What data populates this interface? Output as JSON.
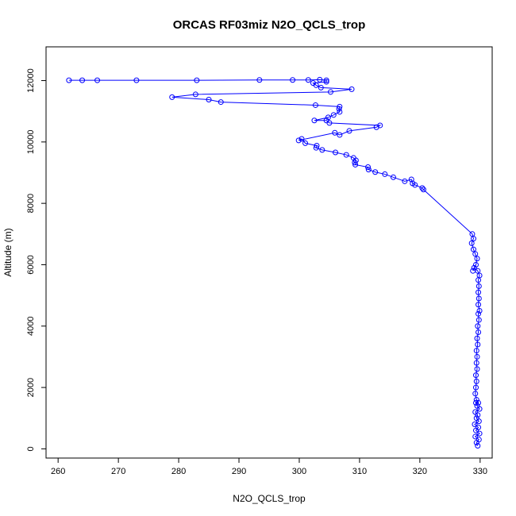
{
  "chart_data": {
    "type": "scatter",
    "title": "ORCAS RF03miz N2O_QCLS_trop",
    "xlabel": "N2O_QCLS_trop",
    "ylabel": "Altitude (m)",
    "xlim": [
      258,
      332
    ],
    "ylim": [
      -300,
      13100
    ],
    "xticks": [
      260,
      270,
      280,
      290,
      300,
      310,
      320,
      330
    ],
    "yticks": [
      0,
      2000,
      4000,
      6000,
      8000,
      10000,
      12000
    ],
    "series": [
      {
        "color": "#0000ff",
        "marker": "open-circle",
        "connected": true,
        "points": [
          [
            329.6,
            100
          ],
          [
            329.4,
            200
          ],
          [
            329.8,
            300
          ],
          [
            329.2,
            400
          ],
          [
            329.9,
            500
          ],
          [
            329.3,
            600
          ],
          [
            329.7,
            700
          ],
          [
            329.1,
            800
          ],
          [
            329.8,
            900
          ],
          [
            329.4,
            1000
          ],
          [
            329.6,
            1100
          ],
          [
            329.2,
            1200
          ],
          [
            329.9,
            1300
          ],
          [
            329.5,
            1400
          ],
          [
            329.3,
            1500
          ],
          [
            329.7,
            1500
          ],
          [
            329.4,
            1600
          ],
          [
            329.2,
            1800
          ],
          [
            329.3,
            2000
          ],
          [
            329.4,
            2200
          ],
          [
            329.3,
            2400
          ],
          [
            329.5,
            2600
          ],
          [
            329.4,
            2800
          ],
          [
            329.5,
            3000
          ],
          [
            329.4,
            3200
          ],
          [
            329.6,
            3400
          ],
          [
            329.5,
            3600
          ],
          [
            329.7,
            3800
          ],
          [
            329.6,
            4000
          ],
          [
            329.8,
            4200
          ],
          [
            329.7,
            4400
          ],
          [
            329.9,
            4500
          ],
          [
            329.7,
            4700
          ],
          [
            329.8,
            4900
          ],
          [
            329.7,
            5100
          ],
          [
            329.8,
            5300
          ],
          [
            329.7,
            5500
          ],
          [
            329.9,
            5650
          ],
          [
            329.6,
            5800
          ],
          [
            329.0,
            5900
          ],
          [
            328.8,
            5800
          ],
          [
            329.3,
            6000
          ],
          [
            329.5,
            6200
          ],
          [
            329.2,
            6350
          ],
          [
            328.9,
            6500
          ],
          [
            328.6,
            6700
          ],
          [
            328.9,
            6850
          ],
          [
            328.7,
            7000
          ],
          [
            320.6,
            8450
          ],
          [
            320.4,
            8500
          ],
          [
            319.2,
            8600
          ],
          [
            318.8,
            8650
          ],
          [
            318.6,
            8780
          ],
          [
            317.5,
            8720
          ],
          [
            315.6,
            8850
          ],
          [
            314.2,
            8950
          ],
          [
            312.6,
            9020
          ],
          [
            311.5,
            9100
          ],
          [
            311.4,
            9180
          ],
          [
            309.3,
            9260
          ],
          [
            309.2,
            9330
          ],
          [
            309.4,
            9400
          ],
          [
            309.0,
            9480
          ],
          [
            307.8,
            9580
          ],
          [
            306.0,
            9660
          ],
          [
            303.8,
            9740
          ],
          [
            302.8,
            9810
          ],
          [
            302.9,
            9880
          ],
          [
            301.0,
            9960
          ],
          [
            300.4,
            10100
          ],
          [
            299.9,
            10050
          ],
          [
            305.9,
            10300
          ],
          [
            306.7,
            10230
          ],
          [
            308.3,
            10360
          ],
          [
            312.8,
            10480
          ],
          [
            313.4,
            10540
          ],
          [
            305.0,
            10620
          ],
          [
            304.5,
            10700
          ],
          [
            302.5,
            10700
          ],
          [
            304.8,
            10800
          ],
          [
            305.7,
            10880
          ],
          [
            306.7,
            10980
          ],
          [
            306.6,
            11080
          ],
          [
            306.7,
            11150
          ],
          [
            302.7,
            11200
          ],
          [
            287.0,
            11300
          ],
          [
            285.0,
            11380
          ],
          [
            278.9,
            11460
          ],
          [
            282.8,
            11550
          ],
          [
            305.2,
            11630
          ],
          [
            308.7,
            11720
          ],
          [
            303.6,
            11770
          ],
          [
            302.8,
            11850
          ],
          [
            302.3,
            11920
          ],
          [
            304.5,
            11960
          ],
          [
            304.5,
            12010
          ],
          [
            303.4,
            12030
          ],
          [
            301.5,
            12020
          ],
          [
            298.9,
            12020
          ],
          [
            293.4,
            12020
          ],
          [
            283.0,
            12010
          ],
          [
            273.0,
            12010
          ],
          [
            266.5,
            12010
          ],
          [
            264.0,
            12010
          ],
          [
            261.8,
            12010
          ]
        ]
      }
    ]
  }
}
